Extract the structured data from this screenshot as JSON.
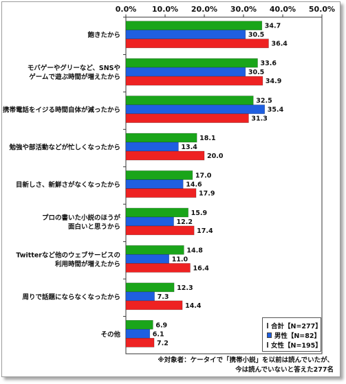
{
  "chart_data": {
    "type": "bar",
    "orientation": "horizontal",
    "categories": [
      [
        "飽きたから"
      ],
      [
        "モバゲーやグリーなど、SNSや",
        "ゲームで遊ぶ時間が増えたから"
      ],
      [
        "携帯電話をイジる時間自体が減ったから"
      ],
      [
        "勉強や部活動などが忙しくなったから"
      ],
      [
        "目新しさ、新鮮さがなくなったから"
      ],
      [
        "プロの書いた小説のほうが",
        "面白いと思うから"
      ],
      [
        "Twitterなど他のウェブサービスの",
        "利用時間が増えたから"
      ],
      [
        "周りで話題にならなくなったから"
      ],
      [
        "その他"
      ]
    ],
    "series": [
      {
        "name": "合計【N=277】",
        "color": "#1aa51a",
        "values": [
          34.7,
          33.6,
          32.5,
          18.1,
          17.0,
          15.9,
          14.8,
          12.3,
          6.9
        ]
      },
      {
        "name": "男性【N=82】",
        "color": "#1f5fe0",
        "values": [
          30.5,
          30.5,
          35.4,
          13.4,
          14.6,
          12.2,
          11.0,
          7.3,
          6.1
        ]
      },
      {
        "name": "女性【N=195】",
        "color": "#ee2222",
        "values": [
          36.4,
          34.9,
          31.3,
          20.0,
          17.9,
          17.4,
          16.4,
          14.4,
          7.2
        ]
      }
    ],
    "value_labels": [
      [
        "34.7",
        "30.5",
        "36.4"
      ],
      [
        "33.6",
        "30.5",
        "34.9"
      ],
      [
        "32.5",
        "35.4",
        "31.3"
      ],
      [
        "18.1",
        "13.4",
        "20.0"
      ],
      [
        "17.0",
        "14.6",
        "17.9"
      ],
      [
        "15.9",
        "12.2",
        "17.4"
      ],
      [
        "14.8",
        "11.0",
        "16.4"
      ],
      [
        "12.3",
        "7.3",
        "14.4"
      ],
      [
        "6.9",
        "6.1",
        "7.2"
      ]
    ],
    "xlim": [
      0,
      50
    ],
    "xticks": [
      "0.0%",
      "10.0%",
      "20.0%",
      "30.0%",
      "40.0%",
      "50.0%"
    ],
    "grid": false,
    "legend_position": "bottom-right"
  },
  "footnote": {
    "line1": "※対象者：ケータイで「携帯小説」を以前は読んでいたが、",
    "line2": "今は読んでいないと答えた277名"
  }
}
